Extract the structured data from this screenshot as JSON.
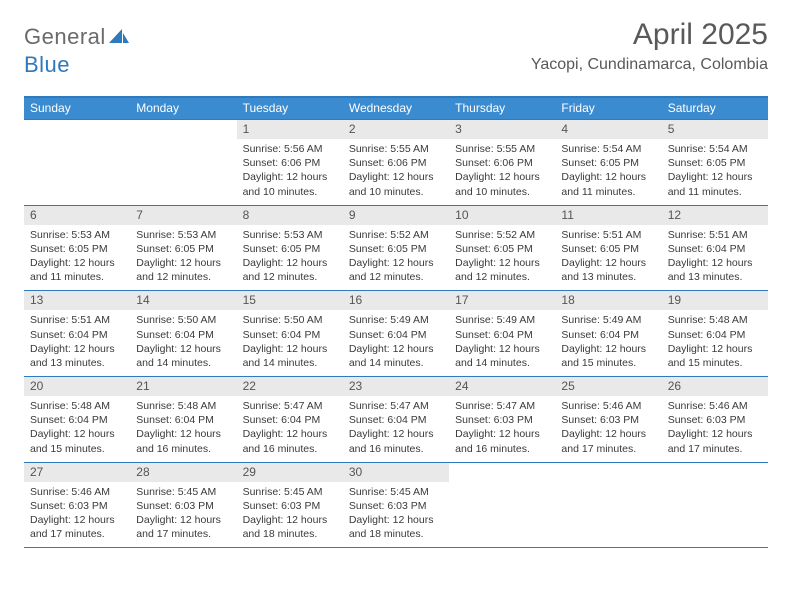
{
  "logo": {
    "text_general": "General",
    "text_blue": "Blue"
  },
  "colors": {
    "header_bg": "#3b8bd0",
    "rule": "#2f79bd",
    "daynum_bg": "#e9e9e9",
    "title": "#595959"
  },
  "title": "April 2025",
  "location": "Yacopi, Cundinamarca, Colombia",
  "day_names": [
    "Sunday",
    "Monday",
    "Tuesday",
    "Wednesday",
    "Thursday",
    "Friday",
    "Saturday"
  ],
  "weeks": [
    [
      {
        "empty": true
      },
      {
        "empty": true
      },
      {
        "num": 1,
        "sunrise": "5:56 AM",
        "sunset": "6:06 PM",
        "daylight": "12 hours and 10 minutes."
      },
      {
        "num": 2,
        "sunrise": "5:55 AM",
        "sunset": "6:06 PM",
        "daylight": "12 hours and 10 minutes."
      },
      {
        "num": 3,
        "sunrise": "5:55 AM",
        "sunset": "6:06 PM",
        "daylight": "12 hours and 10 minutes."
      },
      {
        "num": 4,
        "sunrise": "5:54 AM",
        "sunset": "6:05 PM",
        "daylight": "12 hours and 11 minutes."
      },
      {
        "num": 5,
        "sunrise": "5:54 AM",
        "sunset": "6:05 PM",
        "daylight": "12 hours and 11 minutes."
      }
    ],
    [
      {
        "num": 6,
        "sunrise": "5:53 AM",
        "sunset": "6:05 PM",
        "daylight": "12 hours and 11 minutes."
      },
      {
        "num": 7,
        "sunrise": "5:53 AM",
        "sunset": "6:05 PM",
        "daylight": "12 hours and 12 minutes."
      },
      {
        "num": 8,
        "sunrise": "5:53 AM",
        "sunset": "6:05 PM",
        "daylight": "12 hours and 12 minutes."
      },
      {
        "num": 9,
        "sunrise": "5:52 AM",
        "sunset": "6:05 PM",
        "daylight": "12 hours and 12 minutes."
      },
      {
        "num": 10,
        "sunrise": "5:52 AM",
        "sunset": "6:05 PM",
        "daylight": "12 hours and 12 minutes."
      },
      {
        "num": 11,
        "sunrise": "5:51 AM",
        "sunset": "6:05 PM",
        "daylight": "12 hours and 13 minutes."
      },
      {
        "num": 12,
        "sunrise": "5:51 AM",
        "sunset": "6:04 PM",
        "daylight": "12 hours and 13 minutes."
      }
    ],
    [
      {
        "num": 13,
        "sunrise": "5:51 AM",
        "sunset": "6:04 PM",
        "daylight": "12 hours and 13 minutes."
      },
      {
        "num": 14,
        "sunrise": "5:50 AM",
        "sunset": "6:04 PM",
        "daylight": "12 hours and 14 minutes."
      },
      {
        "num": 15,
        "sunrise": "5:50 AM",
        "sunset": "6:04 PM",
        "daylight": "12 hours and 14 minutes."
      },
      {
        "num": 16,
        "sunrise": "5:49 AM",
        "sunset": "6:04 PM",
        "daylight": "12 hours and 14 minutes."
      },
      {
        "num": 17,
        "sunrise": "5:49 AM",
        "sunset": "6:04 PM",
        "daylight": "12 hours and 14 minutes."
      },
      {
        "num": 18,
        "sunrise": "5:49 AM",
        "sunset": "6:04 PM",
        "daylight": "12 hours and 15 minutes."
      },
      {
        "num": 19,
        "sunrise": "5:48 AM",
        "sunset": "6:04 PM",
        "daylight": "12 hours and 15 minutes."
      }
    ],
    [
      {
        "num": 20,
        "sunrise": "5:48 AM",
        "sunset": "6:04 PM",
        "daylight": "12 hours and 15 minutes."
      },
      {
        "num": 21,
        "sunrise": "5:48 AM",
        "sunset": "6:04 PM",
        "daylight": "12 hours and 16 minutes."
      },
      {
        "num": 22,
        "sunrise": "5:47 AM",
        "sunset": "6:04 PM",
        "daylight": "12 hours and 16 minutes."
      },
      {
        "num": 23,
        "sunrise": "5:47 AM",
        "sunset": "6:04 PM",
        "daylight": "12 hours and 16 minutes."
      },
      {
        "num": 24,
        "sunrise": "5:47 AM",
        "sunset": "6:03 PM",
        "daylight": "12 hours and 16 minutes."
      },
      {
        "num": 25,
        "sunrise": "5:46 AM",
        "sunset": "6:03 PM",
        "daylight": "12 hours and 17 minutes."
      },
      {
        "num": 26,
        "sunrise": "5:46 AM",
        "sunset": "6:03 PM",
        "daylight": "12 hours and 17 minutes."
      }
    ],
    [
      {
        "num": 27,
        "sunrise": "5:46 AM",
        "sunset": "6:03 PM",
        "daylight": "12 hours and 17 minutes."
      },
      {
        "num": 28,
        "sunrise": "5:45 AM",
        "sunset": "6:03 PM",
        "daylight": "12 hours and 17 minutes."
      },
      {
        "num": 29,
        "sunrise": "5:45 AM",
        "sunset": "6:03 PM",
        "daylight": "12 hours and 18 minutes."
      },
      {
        "num": 30,
        "sunrise": "5:45 AM",
        "sunset": "6:03 PM",
        "daylight": "12 hours and 18 minutes."
      },
      {
        "empty": true
      },
      {
        "empty": true
      },
      {
        "empty": true
      }
    ]
  ],
  "labels": {
    "sunrise": "Sunrise:",
    "sunset": "Sunset:",
    "daylight": "Daylight:"
  }
}
